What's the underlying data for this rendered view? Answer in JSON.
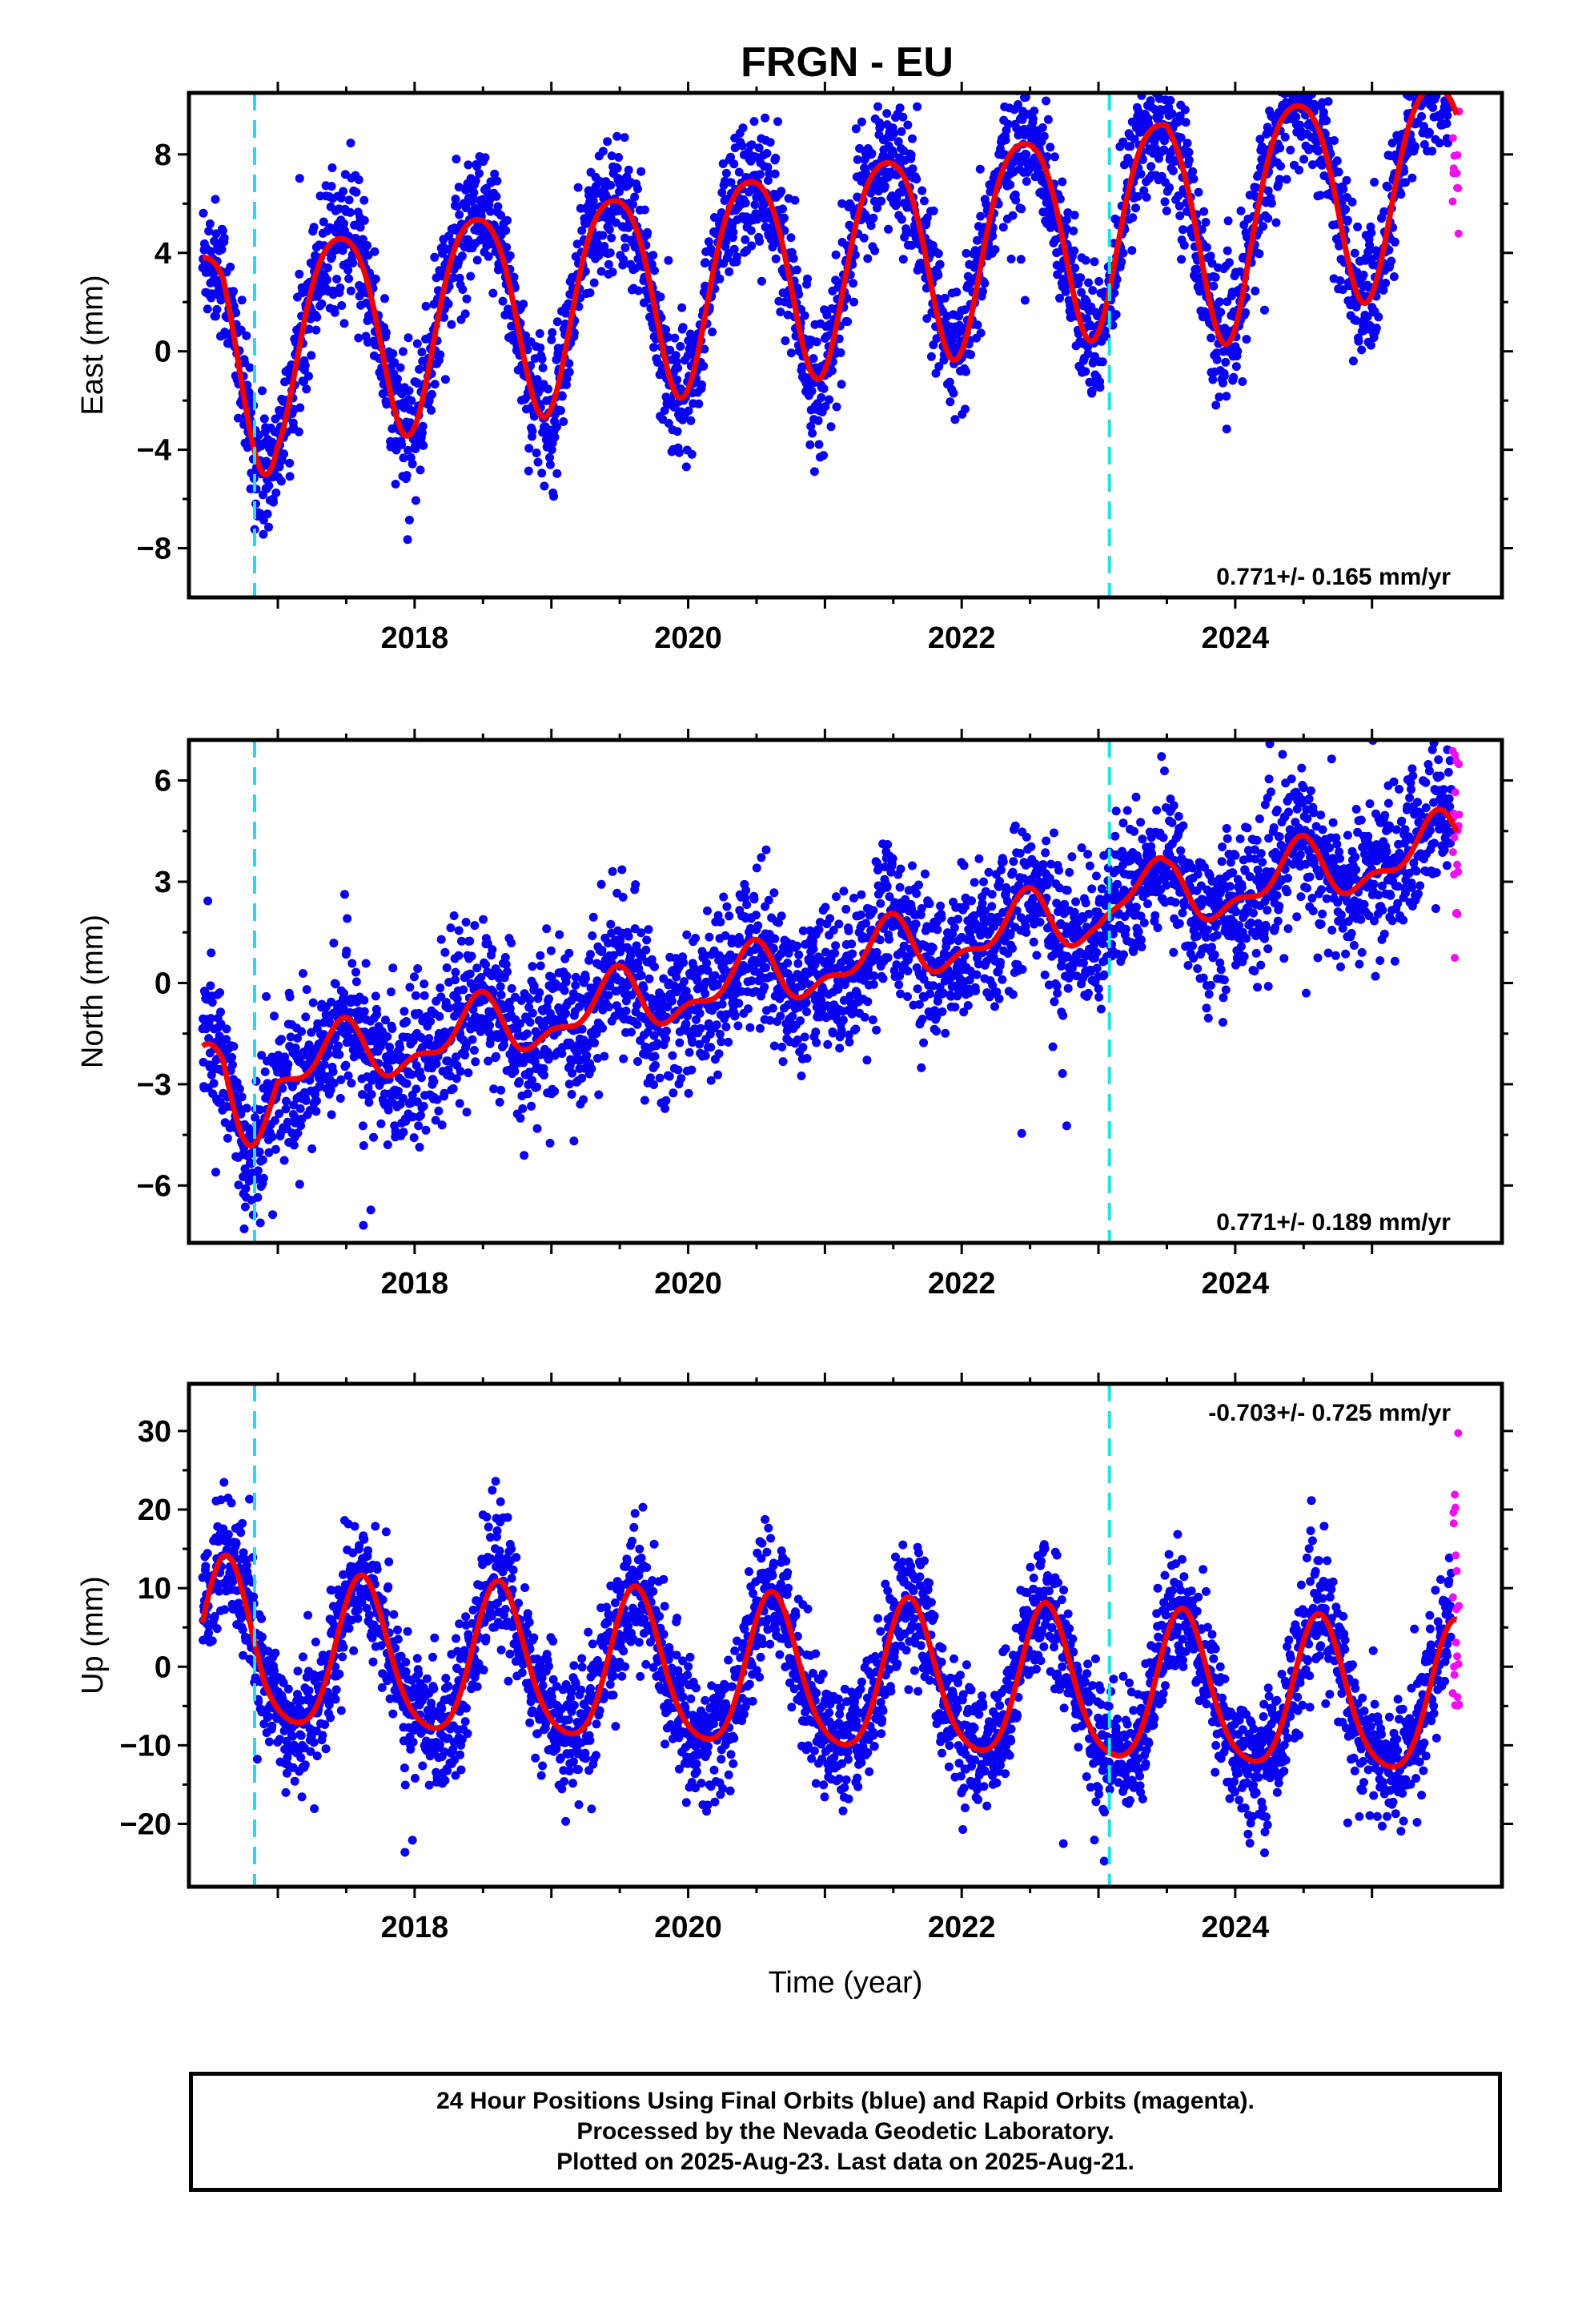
{
  "chart_data": [
    {
      "type": "scatter",
      "title": "FRGN - EU",
      "xlabel": "",
      "ylabel": "East (mm)",
      "xlim": [
        2016.35,
        2025.95
      ],
      "ylim": [
        -10,
        10.5
      ],
      "xticks": [
        2018,
        2020,
        2022,
        2024
      ],
      "yticks": [
        -8,
        -4,
        0,
        4,
        8
      ],
      "offsets": [
        2016.83,
        2023.08
      ],
      "rate_label": "0.771+/- 0.165 mm/yr",
      "rate_position": "bottom-right",
      "model": {
        "start": 2016.45,
        "end": 2025.62,
        "base": 0.2,
        "trend": 0.771,
        "annual_amp": 4.2,
        "annual_peak": 0.45,
        "semi_amp": 0.6,
        "semi_peak": 0.2,
        "extra": [
          [
            2016.6,
            2017.0,
            -1.5
          ],
          [
            2023.5,
            2024.1,
            -1.2
          ]
        ]
      },
      "scatter_sd": 1.3,
      "series": [
        {
          "name": "Final Orbits",
          "color": "#0a00f0",
          "kind": "points",
          "range": [
            2016.45,
            2025.58
          ]
        },
        {
          "name": "Rapid Orbits",
          "color": "#ee10ee",
          "kind": "points",
          "range": [
            2025.59,
            2025.64
          ]
        },
        {
          "name": "Model fit",
          "color": "#f00000",
          "kind": "line",
          "range": [
            2016.45,
            2025.62
          ]
        }
      ]
    },
    {
      "type": "scatter",
      "xlabel": "",
      "ylabel": "North (mm)",
      "xlim": [
        2016.35,
        2025.95
      ],
      "ylim": [
        -7.7,
        7.2
      ],
      "xticks": [
        2018,
        2020,
        2022,
        2024
      ],
      "yticks": [
        -6,
        -3,
        0,
        3,
        6
      ],
      "offsets": [
        2016.83,
        2023.08
      ],
      "rate_label": "0.771+/- 0.189 mm/yr",
      "rate_position": "bottom-right",
      "model": {
        "start": 2016.45,
        "end": 2025.62,
        "base": -3.0,
        "trend": 0.771,
        "annual_amp": 0.8,
        "annual_peak": 0.45,
        "semi_amp": 0.4,
        "semi_peak": 0.0,
        "extra": [
          [
            2016.6,
            2017.0,
            -1.3
          ],
          [
            2023.0,
            2023.5,
            0.6
          ]
        ]
      },
      "scatter_sd": 1.1,
      "series": [
        {
          "name": "Final Orbits",
          "color": "#0a00f0",
          "kind": "points",
          "range": [
            2016.45,
            2025.58
          ]
        },
        {
          "name": "Rapid Orbits",
          "color": "#ee10ee",
          "kind": "points",
          "range": [
            2025.59,
            2025.64
          ]
        },
        {
          "name": "Model fit",
          "color": "#f00000",
          "kind": "line",
          "range": [
            2016.45,
            2025.62
          ]
        }
      ]
    },
    {
      "type": "scatter",
      "xlabel": "Time (year)",
      "ylabel": "Up (mm)",
      "xlim": [
        2016.35,
        2025.95
      ],
      "ylim": [
        -28,
        36
      ],
      "xticks": [
        2018,
        2020,
        2022,
        2024
      ],
      "yticks": [
        -20,
        -10,
        0,
        10,
        20,
        30
      ],
      "offsets": [
        2016.83,
        2023.08
      ],
      "rate_label": "-0.703+/- 0.725 mm/yr",
      "rate_position": "top-right",
      "model": {
        "start": 2016.45,
        "end": 2025.62,
        "base": 1.5,
        "trend": -0.703,
        "annual_amp": 9.5,
        "annual_peak": 0.62,
        "semi_amp": 1.5,
        "semi_peak": 0.1,
        "extra": [
          [
            2016.45,
            2016.9,
            2.0
          ]
        ]
      },
      "scatter_sd": 4.0,
      "series": [
        {
          "name": "Final Orbits",
          "color": "#0a00f0",
          "kind": "points",
          "range": [
            2016.45,
            2025.58
          ]
        },
        {
          "name": "Rapid Orbits",
          "color": "#ee10ee",
          "kind": "points",
          "range": [
            2025.59,
            2025.64
          ]
        },
        {
          "name": "Model fit",
          "color": "#f00000",
          "kind": "line",
          "range": [
            2016.45,
            2025.62
          ]
        }
      ]
    }
  ],
  "footer": {
    "line1": "24 Hour Positions Using Final Orbits (blue) and Rapid Orbits (magenta).",
    "line2": "Processed by the Nevada Geodetic Laboratory.",
    "line3": "Plotted on 2025-Aug-23. Last data on 2025-Aug-21."
  }
}
